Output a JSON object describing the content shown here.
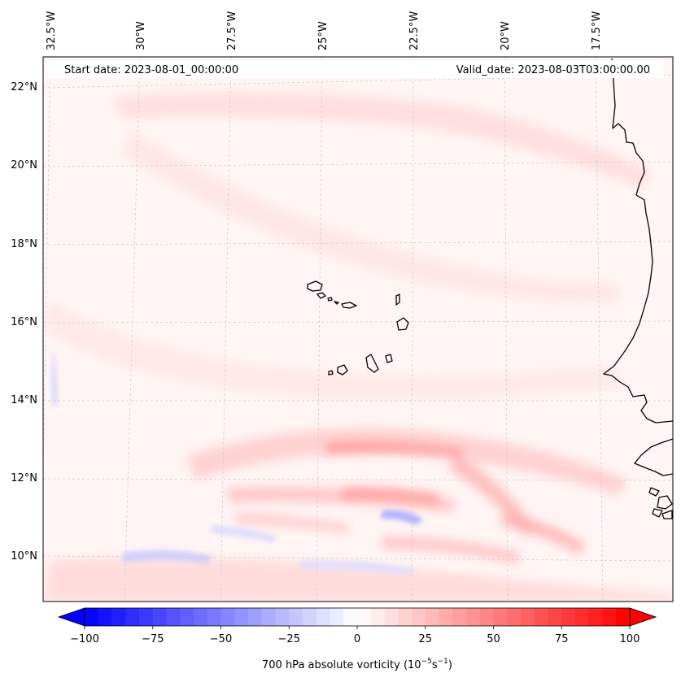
{
  "header": {
    "start_date": "Start date: 2023-08-01_00:00:00",
    "valid_date": "Valid_date: 2023-08-03T03:00:00.00"
  },
  "map": {
    "field": "700 hPa absolute vorticity",
    "lon_labels": [
      "32.5°W",
      "30°W",
      "27.5°W",
      "25°W",
      "22.5°W",
      "20°W",
      "17.5°W"
    ],
    "lat_labels": [
      "22°N",
      "20°N",
      "18°N",
      "16°N",
      "14°N",
      "12°N",
      "10°N"
    ],
    "positive_color": "#ff0000",
    "negative_color": "#0000ff",
    "background_color": "#fff5f5",
    "gridlines": true
  },
  "colorbar": {
    "title_main": "700 hPa absolute vorticity (10",
    "title_exp1": "−5",
    "title_mid": "s",
    "title_exp2": "−1",
    "title_close": ")",
    "ticks": [
      "−100",
      "−75",
      "−50",
      "−25",
      "0",
      "25",
      "50",
      "75",
      "100"
    ],
    "min": -100,
    "max": 100,
    "colormap": "bwr",
    "extend": "both"
  }
}
